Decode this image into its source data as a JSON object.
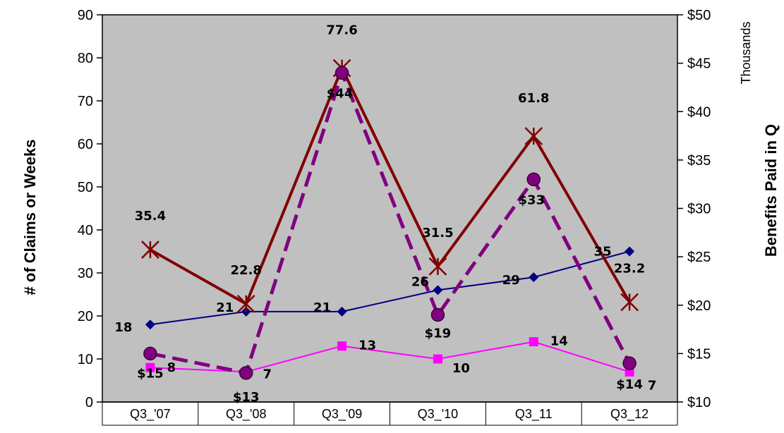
{
  "chart_data": {
    "type": "line",
    "categories": [
      "Q3_'07",
      "Q3_'08",
      "Q3_'09",
      "Q3_'10",
      "Q3_11",
      "Q3_12"
    ],
    "y_left": {
      "label": "# of Claims or Weeks",
      "min": 0,
      "max": 90,
      "step": 10
    },
    "y_right": {
      "label": "Benefits Paid in Q",
      "unit_label": "Thousands",
      "min": 10,
      "max": 50,
      "step": 5,
      "prefix": "$"
    },
    "plot_background": "#c0c0c0",
    "grid": false,
    "legend": "none",
    "series": [
      {
        "axis": "left",
        "color": "#000080",
        "marker": "diamond",
        "dash": false,
        "width": 2,
        "values": [
          18,
          21,
          21,
          26,
          29,
          35
        ],
        "labels": [
          "18",
          "21",
          "21",
          "26",
          "29",
          "35"
        ]
      },
      {
        "axis": "left",
        "color": "#ff00ff",
        "marker": "square",
        "dash": false,
        "width": 2,
        "values": [
          8,
          7,
          13,
          10,
          14,
          7
        ],
        "labels": [
          "8",
          "7",
          "13",
          "10",
          "14",
          "7"
        ]
      },
      {
        "axis": "left",
        "color": "#800000",
        "marker": "star",
        "dash": false,
        "width": 4,
        "values": [
          35.4,
          22.8,
          77.6,
          31.5,
          61.8,
          23.2
        ],
        "labels": [
          "35.4",
          "22.8",
          "77.6",
          "31.5",
          "61.8",
          "23.2"
        ]
      },
      {
        "axis": "right",
        "color": "#800080",
        "marker": "circle",
        "dash": true,
        "width": 5,
        "values": [
          15,
          13,
          44,
          19,
          33,
          14
        ],
        "labels": [
          "$15",
          "$13",
          "$44",
          "$19",
          "$33",
          "$14"
        ]
      }
    ]
  }
}
